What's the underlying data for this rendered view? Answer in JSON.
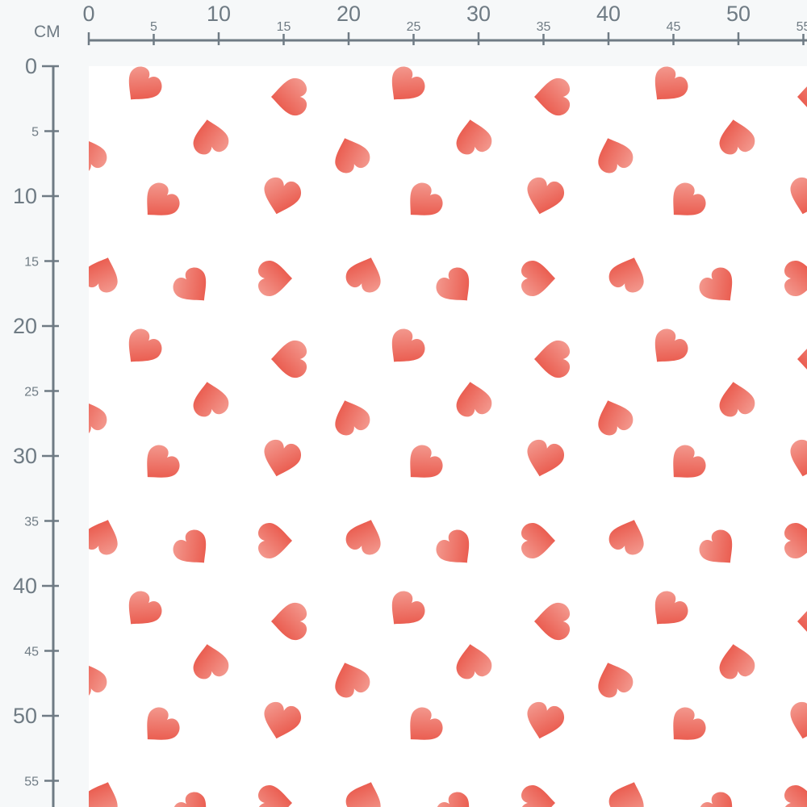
{
  "ruler": {
    "unit_label": "CM",
    "horizontal_labels": [
      "0",
      "5",
      "10",
      "15",
      "20",
      "25",
      "30",
      "35",
      "40",
      "45",
      "50",
      "55"
    ],
    "vertical_labels": [
      "0",
      "5",
      "10",
      "15",
      "20",
      "25",
      "30",
      "35",
      "40",
      "45",
      "50",
      "55"
    ],
    "color": "#6f7b84"
  },
  "fabric": {
    "pattern": "scattered watercolor hearts",
    "background_color": "#ffffff",
    "heart_color_light": "#f3978c",
    "heart_color_dark": "#e5392a"
  }
}
